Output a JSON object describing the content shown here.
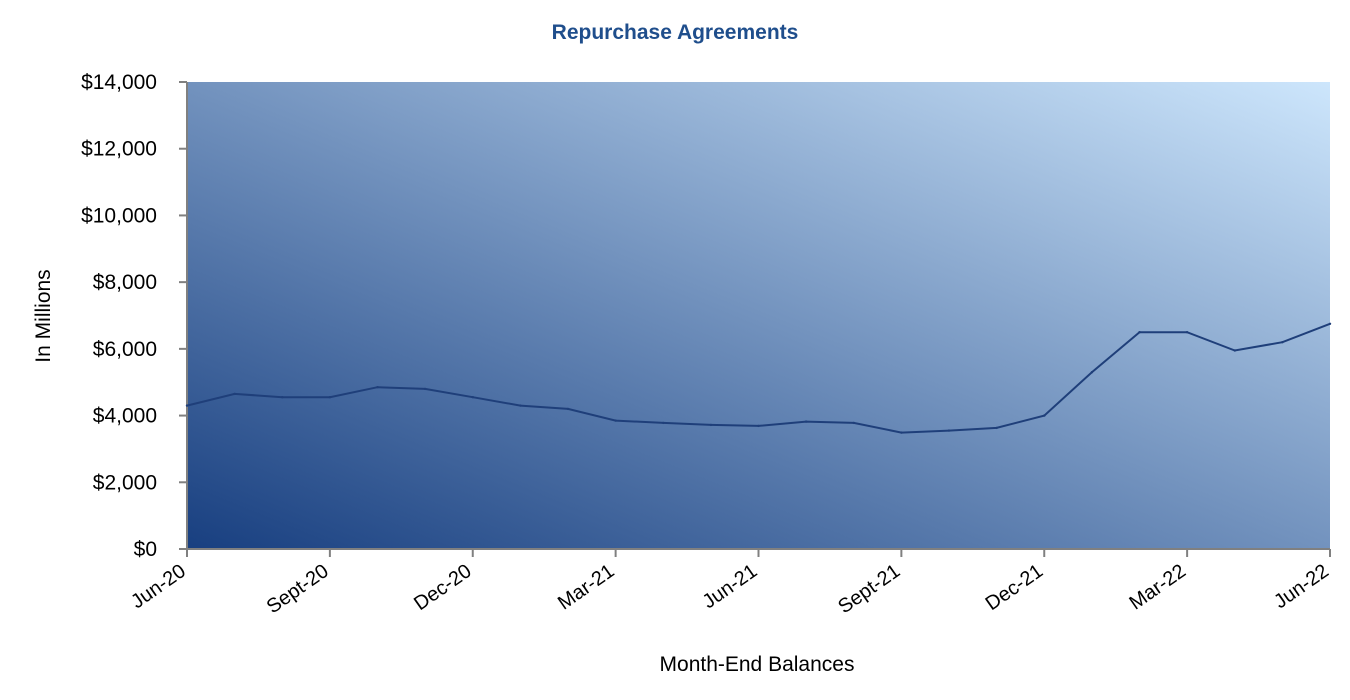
{
  "chart_data": {
    "type": "line",
    "title": "Repurchase Agreements",
    "xlabel": "Month-End Balances",
    "ylabel": "In Millions",
    "ylim": [
      0,
      14000
    ],
    "yticks": [
      0,
      2000,
      4000,
      6000,
      8000,
      10000,
      12000,
      14000
    ],
    "ytick_labels": [
      "$0",
      "$2,000",
      "$4,000",
      "$6,000",
      "$8,000",
      "$10,000",
      "$12,000",
      "$14,000"
    ],
    "xtick_labels": [
      "Jun-20",
      "Sept-20",
      "Dec-20",
      "Mar-21",
      "Jun-21",
      "Sept-21",
      "Dec-21",
      "Mar-22",
      "Jun-22"
    ],
    "grid": false,
    "series": [
      {
        "values": [
          4300,
          4650,
          4550,
          4550,
          4850,
          4800,
          4550,
          4300,
          4200,
          3850,
          3780,
          3720,
          3690,
          3820,
          3780,
          3490,
          3550,
          3630,
          4000,
          5300,
          6500,
          6500,
          5950,
          6200,
          6750
        ],
        "color": "#1f3f7a"
      }
    ],
    "colors": {
      "title": "#1f4e8c",
      "gradient_dark": "#183f80",
      "gradient_light": "#cde6fc",
      "line": "#1f3f7a",
      "axis": "#808080"
    }
  }
}
